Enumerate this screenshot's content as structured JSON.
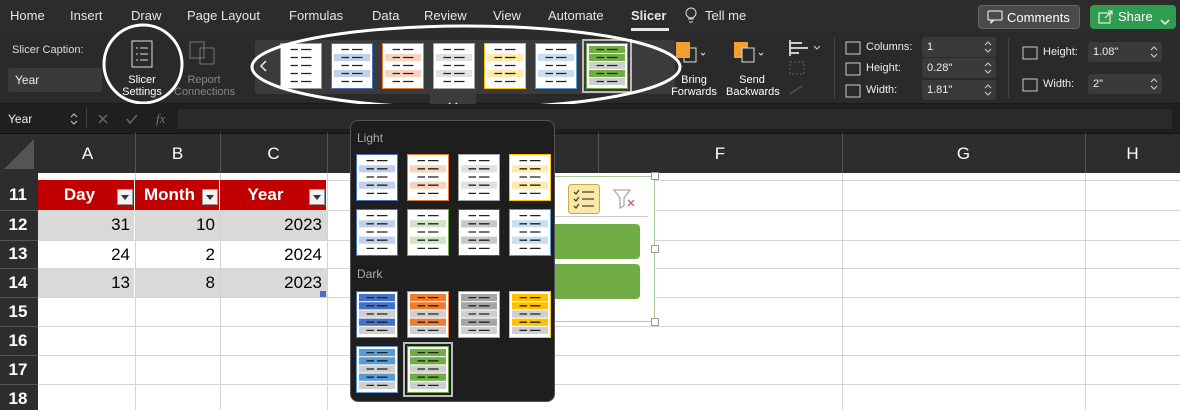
{
  "menu": {
    "tabs": [
      "Home",
      "Insert",
      "Draw",
      "Page Layout",
      "Formulas",
      "Data",
      "Review",
      "View",
      "Automate",
      "Slicer"
    ],
    "tell_me": "Tell me",
    "comments": "Comments",
    "share": "Share"
  },
  "ribbon": {
    "caption_label": "Slicer Caption:",
    "caption_value": "Year",
    "slicer_settings": "Slicer Settings",
    "report_connections": "Report Connections",
    "bring_forwards": "Bring Forwards",
    "send_backwards": "Send Backwards",
    "button_fields": [
      {
        "label": "Columns:",
        "value": "1"
      },
      {
        "label": "Height:",
        "value": "0.28\""
      },
      {
        "label": "Width:",
        "value": "1.81\""
      }
    ],
    "slicer_fields": [
      {
        "label": "Height:",
        "value": "1.08\""
      },
      {
        "label": "Width:",
        "value": "2\""
      }
    ]
  },
  "formula_bar": {
    "name_box": "Year",
    "fx": "fx"
  },
  "sheet": {
    "columns": [
      "A",
      "B",
      "C",
      "F",
      "G",
      "H"
    ],
    "rows": [
      "11",
      "12",
      "13",
      "14",
      "15",
      "16",
      "17",
      "18"
    ],
    "table": {
      "header": [
        "Day",
        "Month",
        "Year"
      ],
      "rows": [
        [
          31,
          10,
          2023
        ],
        [
          24,
          2,
          2024
        ],
        [
          13,
          8,
          2023
        ]
      ]
    }
  },
  "style_menu": {
    "light": "Light",
    "dark": "Dark"
  }
}
